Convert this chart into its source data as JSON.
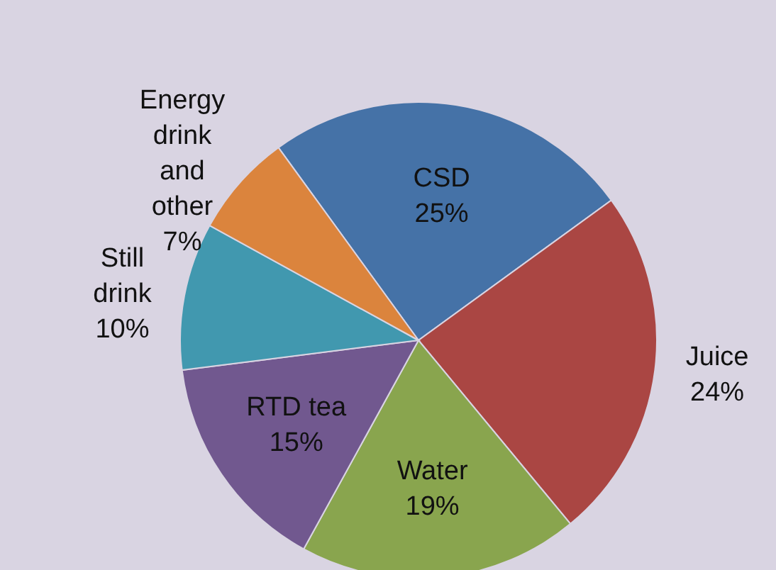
{
  "chart_data": {
    "type": "pie",
    "categories": [
      "CSD",
      "Juice",
      "Water",
      "RTD tea",
      "Still drink",
      "Energy drink and other"
    ],
    "values": [
      25,
      24,
      19,
      15,
      10,
      7
    ],
    "colors": [
      "#4572a7",
      "#aa4643",
      "#89a54e",
      "#71588f",
      "#4198af",
      "#db843d"
    ],
    "value_labels": [
      "25%",
      "24%",
      "19%",
      "15%",
      "10%",
      "7%"
    ]
  }
}
